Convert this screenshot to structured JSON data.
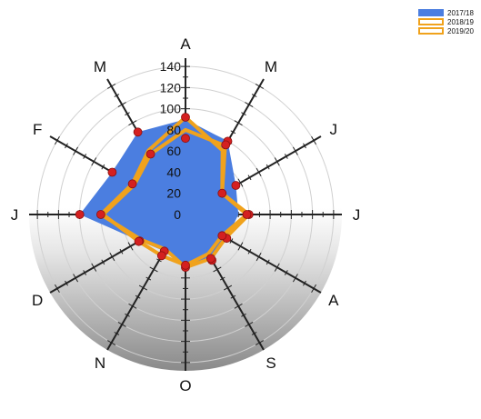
{
  "chart_data": {
    "type": "radar",
    "axes": [
      "A",
      "M",
      "J",
      "J",
      "A",
      "S",
      "O",
      "N",
      "D",
      "J",
      "F",
      "M"
    ],
    "r_ticks": [
      0,
      20,
      40,
      60,
      80,
      100,
      120,
      140
    ],
    "r_range": [
      0,
      140
    ],
    "grid": true,
    "legend_position": "top-right",
    "series": [
      {
        "name": "2017/18",
        "style": "filled",
        "color": "#4b7ee0",
        "values": [
          90,
          80,
          55,
          50,
          45,
          50,
          50,
          40,
          50,
          100,
          80,
          90
        ]
      },
      {
        "name": "2018/19",
        "style": "line",
        "color": "#f0a21c",
        "values": [
          80,
          75,
          40,
          58,
          40,
          43,
          48,
          45,
          51,
          78,
          56,
          66
        ]
      },
      {
        "name": "2019/20",
        "style": "line",
        "color": "#f0a21c",
        "values": [
          92,
          70,
          40,
          60,
          44,
          48,
          50,
          38,
          48,
          80,
          58,
          70
        ]
      }
    ],
    "markers": [
      [
        92,
        80,
        55,
        60,
        45,
        50,
        50,
        40,
        50,
        100,
        80,
        90
      ],
      [
        72,
        76,
        40,
        58,
        40,
        48,
        48,
        45,
        51,
        80,
        58,
        66
      ]
    ],
    "marker_color": "#d42020"
  }
}
